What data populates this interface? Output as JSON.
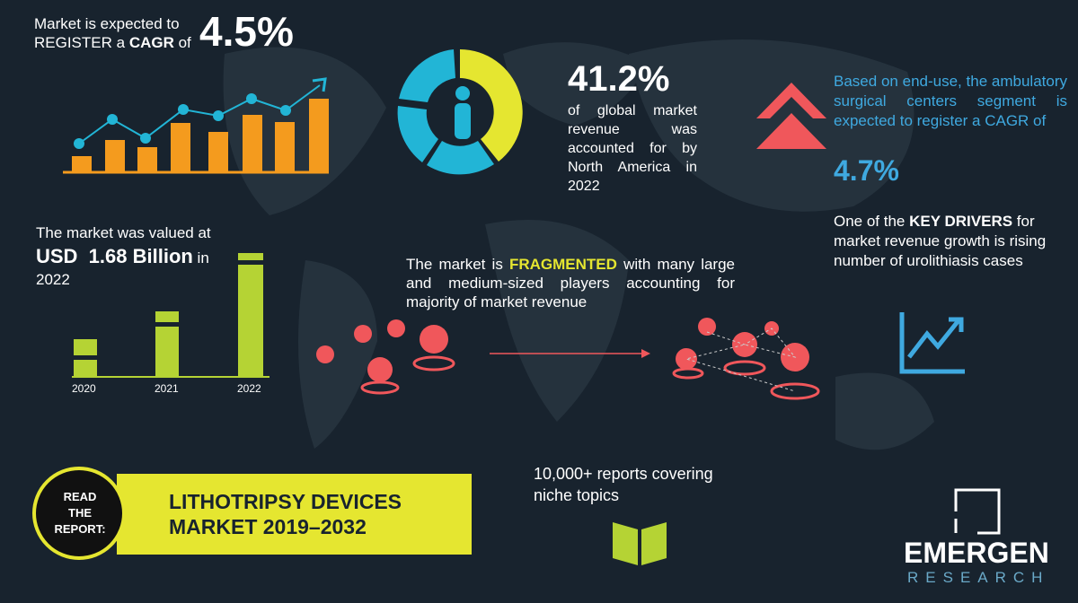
{
  "cagr": {
    "line1": "Market is expected to",
    "line2a": "REGISTER a ",
    "line2b": "CAGR",
    "line2c": " of",
    "value": "4.5%"
  },
  "region": {
    "value": "41.2%",
    "text": "of global market revenue was accounted for by North America in 2022"
  },
  "segment": {
    "text": "Based on end-use, the ambulatory surgical centers segment is expected to register a CAGR of",
    "value": "4.7%"
  },
  "drivers": {
    "pre": "One of the ",
    "bold": "KEY DRIVERS",
    "post": " for market revenue growth is rising number of urolithiasis cases"
  },
  "valuation": {
    "line1": "The market was valued at",
    "value": "USD  1.68 Billion",
    "post": " in",
    "year": "2022",
    "years": [
      "2020",
      "2021",
      "2022"
    ]
  },
  "competition": {
    "pre": "The market is ",
    "bold": "FRAGMENTED",
    "post": " with many large and medium-sized players accounting for majority of market revenue"
  },
  "report": {
    "read": "READ THE REPORT:",
    "title": "LITHOTRIPSY DEVICES MARKET 2019–2032"
  },
  "reports": {
    "text": "10,000+ reports covering niche topics"
  },
  "logo": {
    "name": "EMERGEN",
    "sub": "RESEARCH"
  }
}
